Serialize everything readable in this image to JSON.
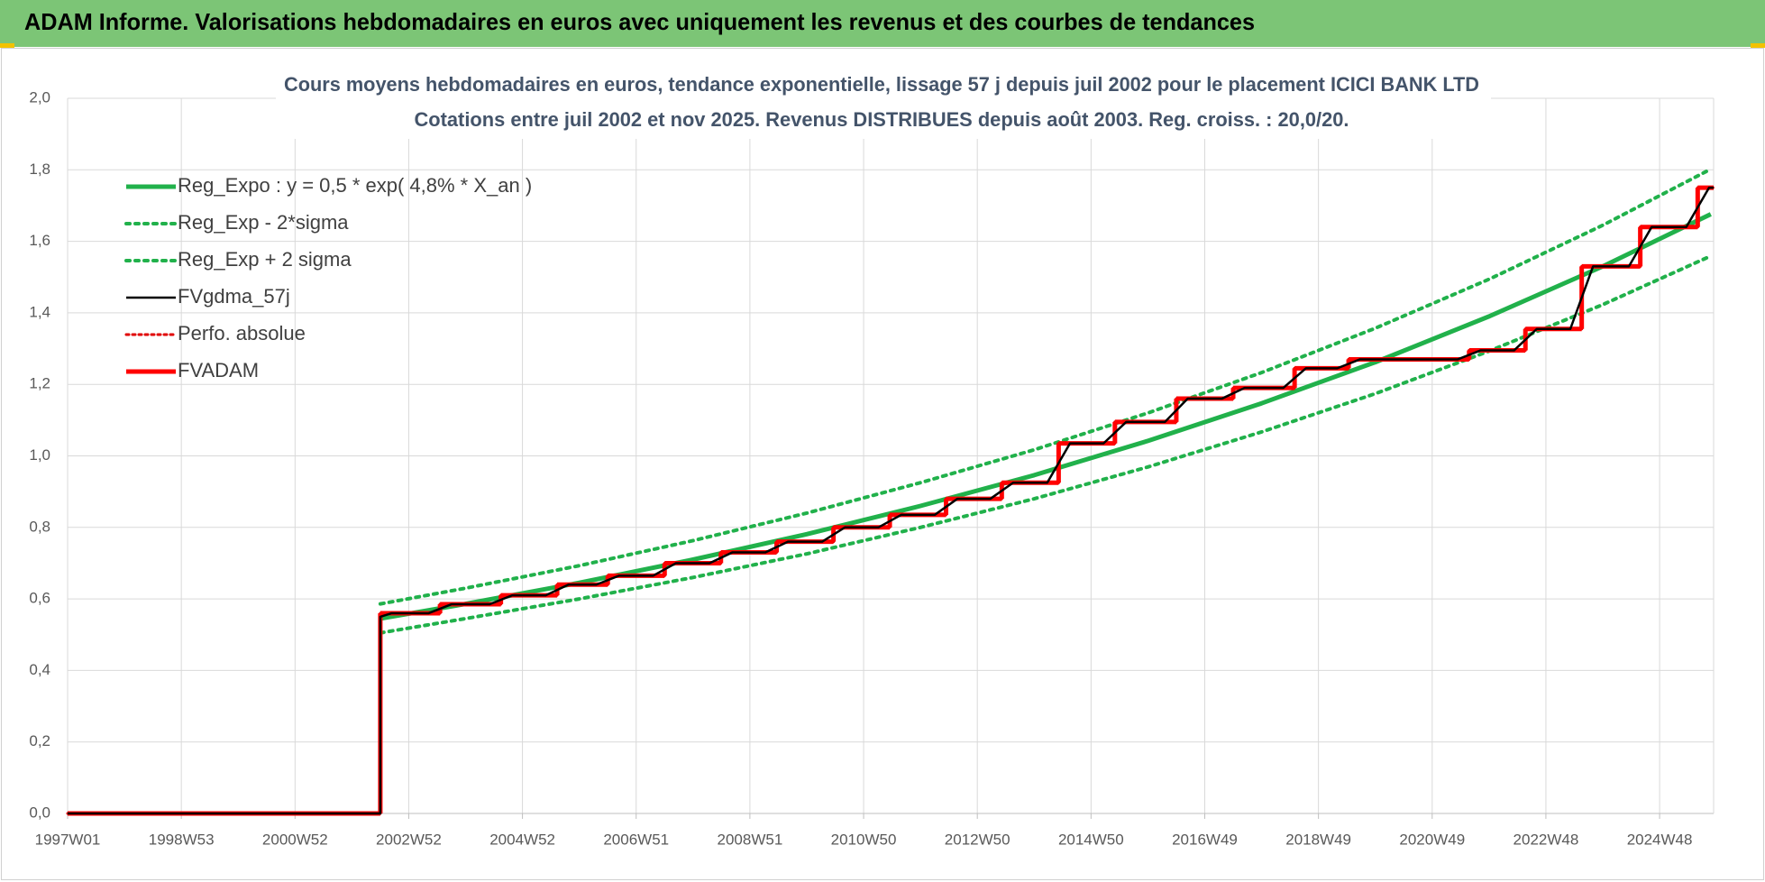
{
  "header": {
    "title": "ADAM Informe. Valorisations hebdomadaires en euros avec uniquement les revenus et des courbes de tendances"
  },
  "chart_data": {
    "type": "line",
    "title": [
      "Cours moyens hebdomadaires en euros, tendance exponentielle, lissage 57 j depuis juil 2002 pour le placement ICICI BANK LTD",
      "Cotations entre juil 2002 et nov 2025. Revenus DISTRIBUES depuis août 2003. Reg. croiss. : 20,0/20."
    ],
    "xlim": [
      1997,
      2025.95
    ],
    "xticks": [
      {
        "value": 1997,
        "label": "1997W01"
      },
      {
        "value": 1999,
        "label": "1998W53"
      },
      {
        "value": 2001,
        "label": "2000W52"
      },
      {
        "value": 2003,
        "label": "2002W52"
      },
      {
        "value": 2005,
        "label": "2004W52"
      },
      {
        "value": 2007,
        "label": "2006W51"
      },
      {
        "value": 2009,
        "label": "2008W51"
      },
      {
        "value": 2011,
        "label": "2010W50"
      },
      {
        "value": 2013,
        "label": "2012W50"
      },
      {
        "value": 2015,
        "label": "2014W50"
      },
      {
        "value": 2017,
        "label": "2016W49"
      },
      {
        "value": 2019,
        "label": "2018W49"
      },
      {
        "value": 2021,
        "label": "2020W49"
      },
      {
        "value": 2023,
        "label": "2022W48"
      },
      {
        "value": 2025,
        "label": "2024W48"
      }
    ],
    "ylim": [
      0,
      2
    ],
    "yticks": [
      {
        "value": 0,
        "label": "0,0"
      },
      {
        "value": 0.2,
        "label": "0,2"
      },
      {
        "value": 0.4,
        "label": "0,4"
      },
      {
        "value": 0.6,
        "label": "0,6"
      },
      {
        "value": 0.8,
        "label": "0,8"
      },
      {
        "value": 1,
        "label": "1,0"
      },
      {
        "value": 1.2,
        "label": "1,2"
      },
      {
        "value": 1.4,
        "label": "1,4"
      },
      {
        "value": 1.6,
        "label": "1,6"
      },
      {
        "value": 1.8,
        "label": "1,8"
      },
      {
        "value": 2,
        "label": "2,0"
      }
    ],
    "grid": true,
    "legend": "upper left",
    "series": [
      {
        "name": "Reg_Expo : y = 0,5 * exp( 4,8% *  X_an )",
        "color": "#21b14b",
        "style": "solid",
        "width": 5,
        "x": [
          2002.5,
          2004,
          2006,
          2008,
          2010,
          2012,
          2014,
          2016,
          2018,
          2020,
          2022,
          2024,
          2025.9
        ],
        "values": [
          0.545,
          0.586,
          0.645,
          0.71,
          0.781,
          0.86,
          0.946,
          1.042,
          1.147,
          1.262,
          1.39,
          1.53,
          1.676
        ]
      },
      {
        "name": "Reg_Exp - 2*sigma",
        "color": "#21b14b",
        "style": "dotted",
        "width": 4,
        "x": [
          2002.5,
          2004,
          2006,
          2008,
          2010,
          2012,
          2014,
          2016,
          2018,
          2020,
          2022,
          2024,
          2025.9
        ],
        "values": [
          0.505,
          0.545,
          0.6,
          0.66,
          0.726,
          0.8,
          0.88,
          0.969,
          1.067,
          1.174,
          1.293,
          1.423,
          1.559
        ]
      },
      {
        "name": "Reg_Exp + 2 sigma",
        "color": "#21b14b",
        "style": "dotted",
        "width": 4,
        "x": [
          2002.5,
          2004,
          2006,
          2008,
          2010,
          2012,
          2014,
          2016,
          2018,
          2020,
          2022,
          2024,
          2025.9
        ],
        "values": [
          0.586,
          0.63,
          0.693,
          0.763,
          0.84,
          0.925,
          1.017,
          1.12,
          1.233,
          1.357,
          1.494,
          1.645,
          1.802
        ]
      },
      {
        "name": "FVgdma_57j",
        "color": "#000000",
        "style": "solid",
        "width": 2.5,
        "x": [
          1997,
          2002.5,
          2002.5,
          2002.7,
          2003.35,
          2003.75,
          2004.42,
          2004.82,
          2005.41,
          2005.81,
          2006.3,
          2006.7,
          2007.3,
          2007.7,
          2008.29,
          2008.69,
          2009.27,
          2009.67,
          2010.27,
          2010.67,
          2011.26,
          2011.66,
          2012.25,
          2012.65,
          2013.23,
          2013.63,
          2014.23,
          2014.63,
          2015.22,
          2015.62,
          2016.3,
          2016.7,
          2017.3,
          2017.7,
          2018.38,
          2018.78,
          2019.33,
          2019.73,
          2021.45,
          2021.85,
          2022.44,
          2022.84,
          2023.43,
          2023.83,
          2024.46,
          2024.86,
          2025.47,
          2025.87,
          2025.95
        ],
        "values": [
          0,
          0,
          0.55,
          0.56,
          0.56,
          0.585,
          0.585,
          0.61,
          0.61,
          0.64,
          0.64,
          0.665,
          0.665,
          0.7,
          0.7,
          0.73,
          0.73,
          0.76,
          0.76,
          0.8,
          0.8,
          0.835,
          0.835,
          0.88,
          0.88,
          0.925,
          0.925,
          1.035,
          1.035,
          1.095,
          1.095,
          1.16,
          1.16,
          1.19,
          1.19,
          1.245,
          1.245,
          1.27,
          1.27,
          1.295,
          1.295,
          1.355,
          1.355,
          1.53,
          1.53,
          1.64,
          1.64,
          1.75,
          1.75
        ]
      },
      {
        "name": "Perfo. absolue",
        "color": "#e00000",
        "style": "dotted",
        "width": 3,
        "step": true,
        "x": [
          1997,
          2002.5,
          2003.55,
          2004.62,
          2005.61,
          2006.5,
          2007.5,
          2008.49,
          2009.47,
          2010.47,
          2011.46,
          2012.45,
          2013.43,
          2014.43,
          2015.42,
          2016.5,
          2017.5,
          2018.58,
          2019.53,
          2021.65,
          2022.64,
          2023.63,
          2024.66,
          2025.67
        ],
        "values": [
          0,
          0.56,
          0.585,
          0.61,
          0.64,
          0.665,
          0.7,
          0.73,
          0.76,
          0.8,
          0.835,
          0.88,
          0.925,
          1.035,
          1.095,
          1.16,
          1.19,
          1.245,
          1.27,
          1.295,
          1.355,
          1.53,
          1.64,
          1.75
        ]
      },
      {
        "name": "FVADAM",
        "color": "#ff0000",
        "style": "solid",
        "width": 5,
        "step": true,
        "x": [
          1997,
          2002.5,
          2003.55,
          2004.62,
          2005.61,
          2006.5,
          2007.5,
          2008.49,
          2009.47,
          2010.47,
          2011.46,
          2012.45,
          2013.43,
          2014.43,
          2015.42,
          2016.5,
          2017.5,
          2018.58,
          2019.53,
          2021.65,
          2022.64,
          2023.63,
          2024.66,
          2025.67
        ],
        "values": [
          0,
          0.56,
          0.585,
          0.61,
          0.64,
          0.665,
          0.7,
          0.73,
          0.76,
          0.8,
          0.835,
          0.88,
          0.925,
          1.035,
          1.095,
          1.16,
          1.19,
          1.245,
          1.27,
          1.295,
          1.355,
          1.53,
          1.64,
          1.75
        ]
      }
    ]
  }
}
